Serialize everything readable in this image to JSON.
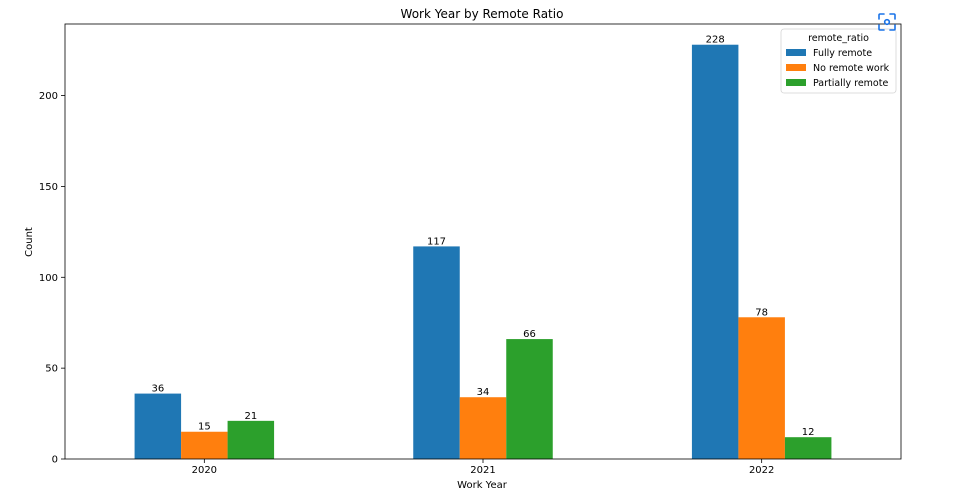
{
  "chart_data": {
    "type": "bar",
    "title": "Work Year by Remote Ratio",
    "xlabel": "Work Year",
    "ylabel": "Count",
    "categories": [
      "2020",
      "2021",
      "2022"
    ],
    "series": [
      {
        "name": "Fully remote",
        "values": [
          36,
          117,
          228
        ],
        "color": "#1f77b4"
      },
      {
        "name": "No remote work",
        "values": [
          15,
          34,
          78
        ],
        "color": "#ff7f0e"
      },
      {
        "name": "Partially remote",
        "values": [
          21,
          66,
          12
        ],
        "color": "#2ca02c"
      }
    ],
    "ylim": [
      0,
      239.4
    ],
    "yticks": [
      0,
      50,
      100,
      150,
      200
    ],
    "legend": {
      "title": "remote_ratio",
      "placement": "top-right"
    },
    "grid": false,
    "data_labels": true
  },
  "toolbar": {
    "screenshot_icon": "focus-capture-icon",
    "accent": "#1a73e8"
  }
}
